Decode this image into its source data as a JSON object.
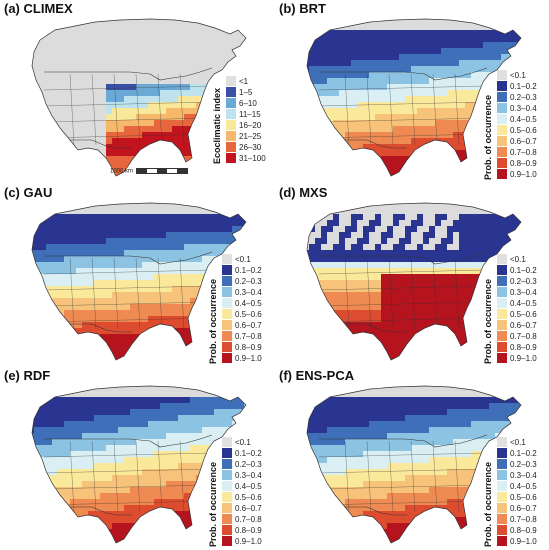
{
  "panels": [
    {
      "title": "(a) CLIMEX",
      "legend_title": "Ecoclimatic index",
      "kind": "climex"
    },
    {
      "title": "(b) BRT",
      "legend_title": "Prob. of occurrence",
      "kind": "brt"
    },
    {
      "title": "(c) GAU",
      "legend_title": "Prob. of occurrence",
      "kind": "gau"
    },
    {
      "title": "(d) MXS",
      "legend_title": "Prob. of occurrence",
      "kind": "mxs"
    },
    {
      "title": "(e) RDF",
      "legend_title": "Prob. of occurrence",
      "kind": "rdf"
    },
    {
      "title": "(f) ENS-PCA",
      "legend_title": "Prob. of occurrence",
      "kind": "ens"
    }
  ],
  "climex_legend": [
    "<1",
    "1–5",
    "6–10",
    "11–15",
    "16–20",
    "21–25",
    "26–30",
    "31–100"
  ],
  "prob_legend": [
    "<0.1",
    "0.1–0.2",
    "0.2–0.3",
    "0.3–0.4",
    "0.4–0.5",
    "0.5–0.6",
    "0.6–0.7",
    "0.7–0.8",
    "0.8–0.9",
    "0.9–1.0"
  ],
  "scale_bar_label": "1000 km",
  "colors": {
    "climex": [
      "#e0e0e0",
      "#3a4fa6",
      "#6aa9d6",
      "#bfe3ee",
      "#f9e79a",
      "#f6b86a",
      "#e8663e",
      "#c1141f"
    ],
    "prob": [
      "#e0e0e0",
      "#2a3592",
      "#3e6fb8",
      "#8cc2e2",
      "#d9eff3",
      "#fbe99b",
      "#f7c27a",
      "#ef8b52",
      "#de4c30",
      "#b5141f"
    ],
    "land_grey": "#dcdcdc",
    "border": "#333333",
    "edge": "#cc33ff"
  }
}
